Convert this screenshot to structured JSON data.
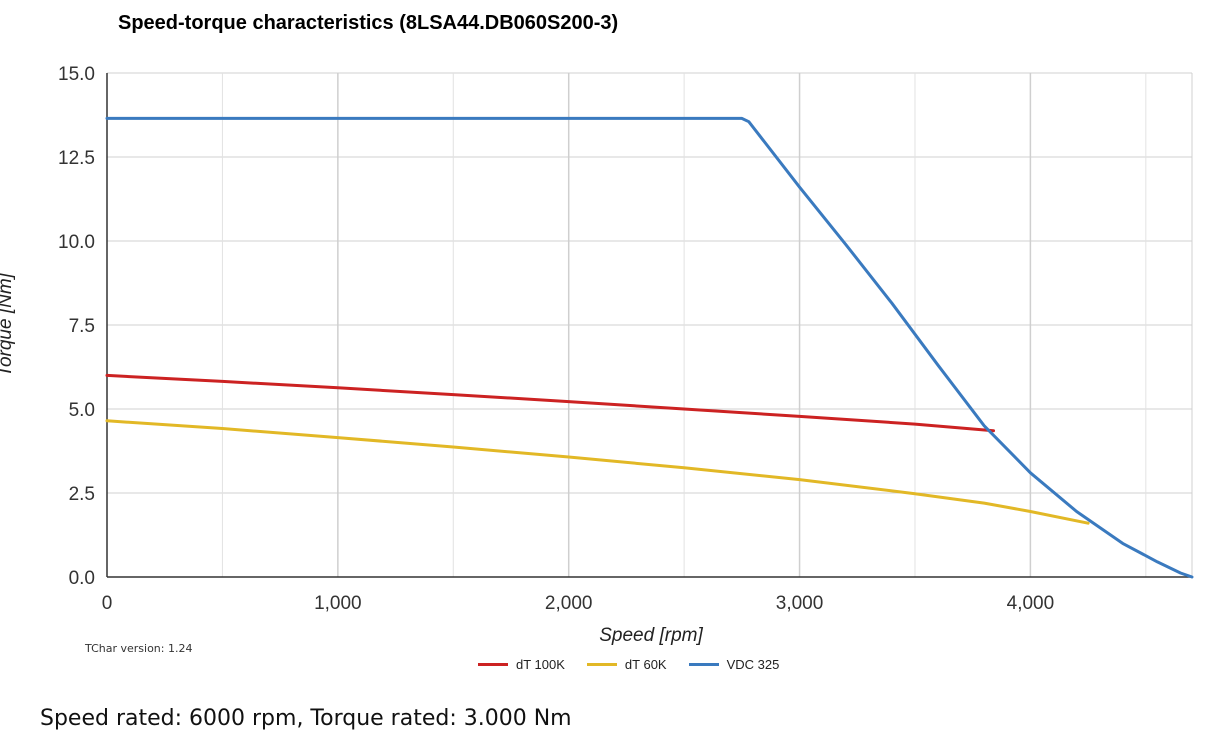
{
  "chart_data": {
    "type": "line",
    "title": "Speed-torque characteristics (8LSA44.DB060S200-3)",
    "xlabel": "Speed [rpm]",
    "ylabel": "Torque [Nm]",
    "xlim": [
      0,
      4700
    ],
    "ylim": [
      0,
      15
    ],
    "x_ticks": [
      0,
      1000,
      2000,
      3000,
      4000
    ],
    "x_tick_labels": [
      "0",
      "1,000",
      "2,000",
      "3,000",
      "4,000"
    ],
    "y_ticks": [
      0,
      2.5,
      5,
      7.5,
      10,
      12.5,
      15
    ],
    "y_tick_labels": [
      "0.0",
      "2.5",
      "5.0",
      "7.5",
      "10.0",
      "12.5",
      "15.0"
    ],
    "x_minor_grid": [
      500,
      1500,
      2500,
      3500,
      4500
    ],
    "grid": true,
    "legend_position": "bottom-center",
    "series": [
      {
        "name": "dT 100K",
        "color": "#cc2222",
        "points": [
          [
            0,
            6.0
          ],
          [
            500,
            5.82
          ],
          [
            1000,
            5.63
          ],
          [
            1500,
            5.43
          ],
          [
            2000,
            5.22
          ],
          [
            2500,
            5.0
          ],
          [
            3000,
            4.78
          ],
          [
            3500,
            4.55
          ],
          [
            3840,
            4.35
          ]
        ]
      },
      {
        "name": "dT 60K",
        "color": "#e2b826",
        "points": [
          [
            0,
            4.65
          ],
          [
            500,
            4.42
          ],
          [
            1000,
            4.15
          ],
          [
            1500,
            3.87
          ],
          [
            2000,
            3.57
          ],
          [
            2500,
            3.25
          ],
          [
            3000,
            2.9
          ],
          [
            3500,
            2.48
          ],
          [
            3800,
            2.2
          ],
          [
            4000,
            1.95
          ],
          [
            4250,
            1.6
          ]
        ]
      },
      {
        "name": "VDC 325",
        "color": "#3a7abf",
        "points": [
          [
            0,
            13.65
          ],
          [
            2750,
            13.65
          ],
          [
            2780,
            13.55
          ],
          [
            3000,
            11.6
          ],
          [
            3200,
            9.9
          ],
          [
            3400,
            8.15
          ],
          [
            3600,
            6.3
          ],
          [
            3800,
            4.5
          ],
          [
            4000,
            3.1
          ],
          [
            4200,
            1.95
          ],
          [
            4400,
            1.0
          ],
          [
            4550,
            0.45
          ],
          [
            4650,
            0.12
          ],
          [
            4700,
            0.0
          ]
        ]
      }
    ]
  },
  "footer": {
    "version_text": "TChar version: 1.24",
    "rated_text": "Speed rated: 6000 rpm, Torque rated: 3.000 Nm"
  }
}
